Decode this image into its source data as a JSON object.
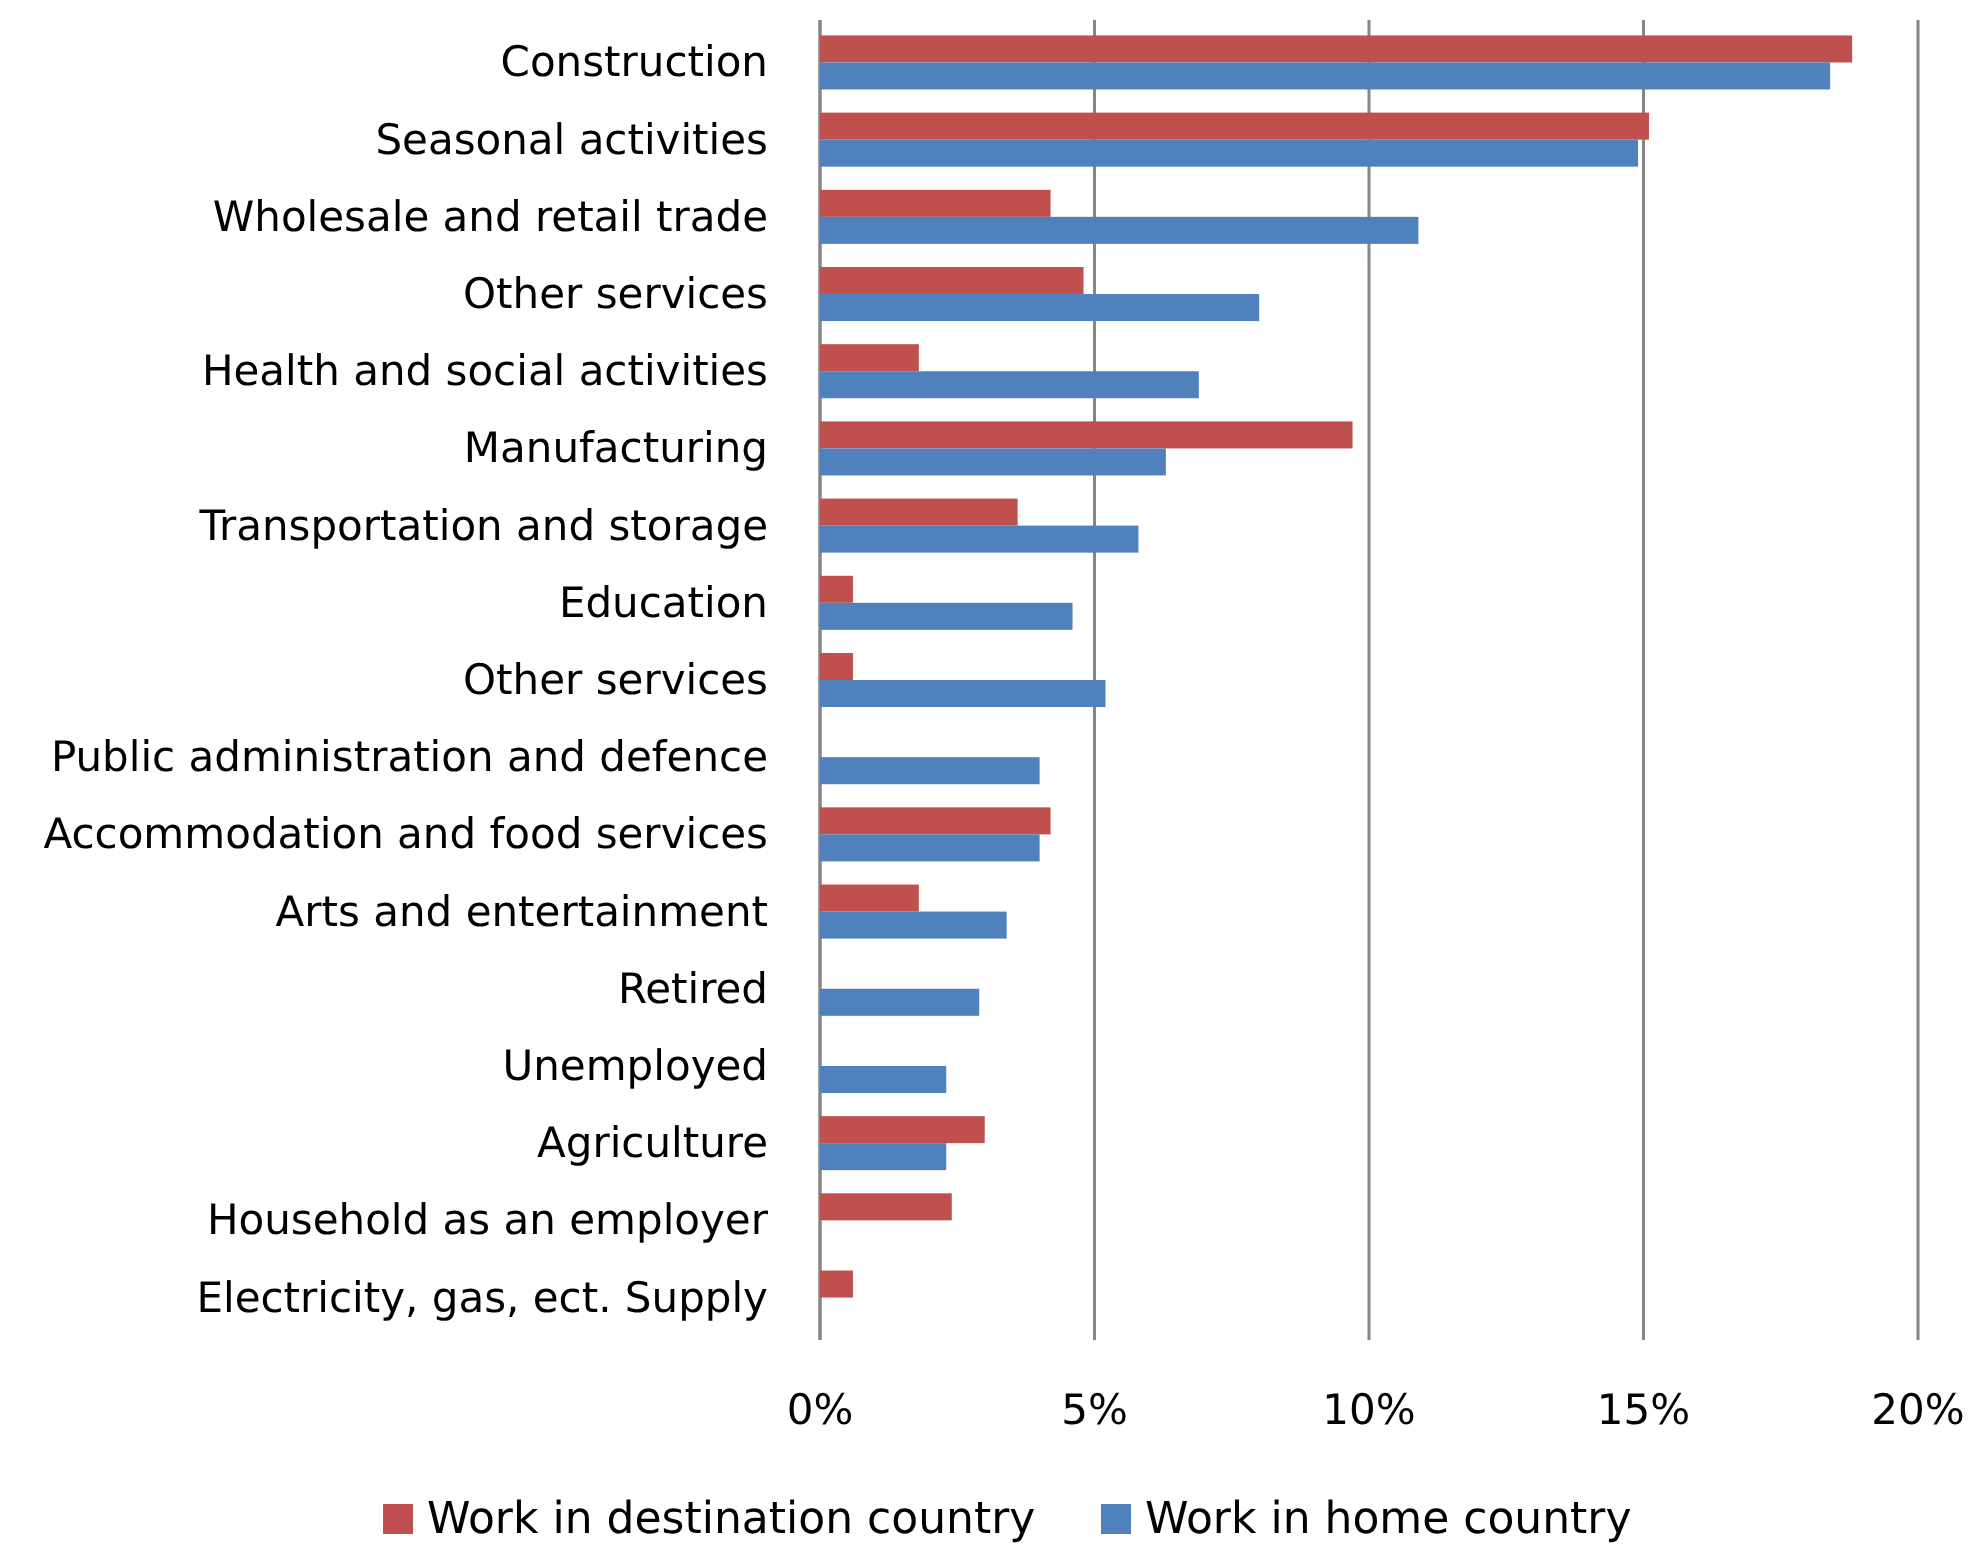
{
  "chart_data": {
    "type": "bar",
    "orientation": "horizontal",
    "categories": [
      "Construction",
      "Seasonal activities",
      "Wholesale and retail trade",
      "Other services",
      "Health and social activities",
      "Manufacturing",
      "Transportation and storage",
      "Education",
      "Other services",
      "Public administration and defence",
      "Accommodation and food services",
      "Arts and entertainment",
      "Retired",
      "Unemployed",
      "Agriculture",
      "Household as an employer",
      "Electricity, gas, ect. Supply"
    ],
    "series": [
      {
        "name": "Work in destination country",
        "color": "#c0504d",
        "values": [
          18.8,
          15.1,
          4.2,
          4.8,
          1.8,
          9.7,
          3.6,
          0.6,
          0.6,
          null,
          4.2,
          1.8,
          null,
          null,
          3.0,
          2.4,
          0.6
        ]
      },
      {
        "name": "Work in home country",
        "color": "#4f81bd",
        "values": [
          18.4,
          14.9,
          10.9,
          8.0,
          6.9,
          6.3,
          5.8,
          4.6,
          5.2,
          4.0,
          4.0,
          3.4,
          2.9,
          2.3,
          2.3,
          null,
          null
        ]
      }
    ],
    "xlim": [
      0,
      20
    ],
    "xticks": [
      {
        "value": 0,
        "label": "0%"
      },
      {
        "value": 5,
        "label": "5%"
      },
      {
        "value": 10,
        "label": "10%"
      },
      {
        "value": 15,
        "label": "15%"
      },
      {
        "value": 20,
        "label": "20%"
      }
    ],
    "grid": "x",
    "legend": "bottom"
  }
}
